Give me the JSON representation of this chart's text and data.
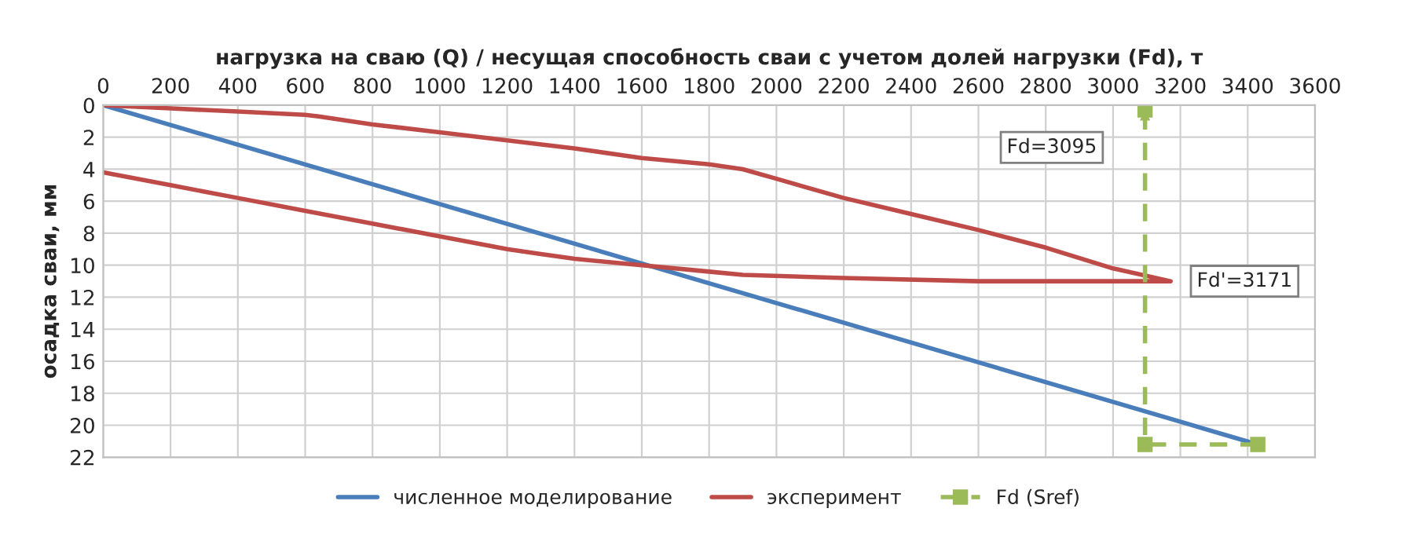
{
  "chart_data": {
    "type": "line",
    "xlabel": "нагрузка на сваю (Q) / несущая способность сваи с учетом долей нагрузки (Fd), т",
    "ylabel": "осадка сваи, мм",
    "xlim": [
      0,
      3600
    ],
    "xticks": [
      0,
      200,
      400,
      600,
      800,
      1000,
      1200,
      1400,
      1600,
      1800,
      2000,
      2200,
      2400,
      2600,
      2800,
      3000,
      3200,
      3400,
      3600
    ],
    "ylim": [
      22,
      0
    ],
    "yticks": [
      0,
      2,
      4,
      6,
      8,
      10,
      12,
      14,
      16,
      18,
      20,
      22
    ],
    "grid": true,
    "legend": "bottom",
    "series": [
      {
        "name": "численное моделирование",
        "color": "#4a7ebb",
        "x": [
          0,
          3430
        ],
        "values": [
          0,
          21.2
        ]
      },
      {
        "name": "эксперимент",
        "color": "#be4b48",
        "x": [
          0,
          200,
          400,
          600,
          640,
          800,
          1000,
          1200,
          1400,
          1600,
          1800,
          1900,
          2000,
          2200,
          2400,
          2600,
          2800,
          3000,
          3171,
          3000,
          2600,
          2200,
          1900,
          1800,
          1600,
          1400,
          1300,
          1200,
          1000,
          800,
          600,
          400,
          200,
          0
        ],
        "values": [
          0,
          0.2,
          0.4,
          0.6,
          0.7,
          1.2,
          1.7,
          2.2,
          2.7,
          3.3,
          3.7,
          4.0,
          4.6,
          5.8,
          6.8,
          7.8,
          8.9,
          10.2,
          11,
          11.0,
          11.0,
          10.8,
          10.6,
          10.4,
          10.0,
          9.6,
          9.3,
          9.0,
          8.2,
          7.4,
          6.6,
          5.8,
          5.0,
          4.2
        ]
      },
      {
        "name": "Fd (Sref)",
        "color": "#9bbb59",
        "x": [
          3430,
          3095,
          3095
        ],
        "values": [
          21.2,
          21.2,
          0.3
        ],
        "marker": "square",
        "line_style": "dashed"
      }
    ],
    "annotations": [
      "Fd=3095",
      {
        "text": "Fd'=3171",
        "x": 3171,
        "y": 11
      }
    ]
  }
}
